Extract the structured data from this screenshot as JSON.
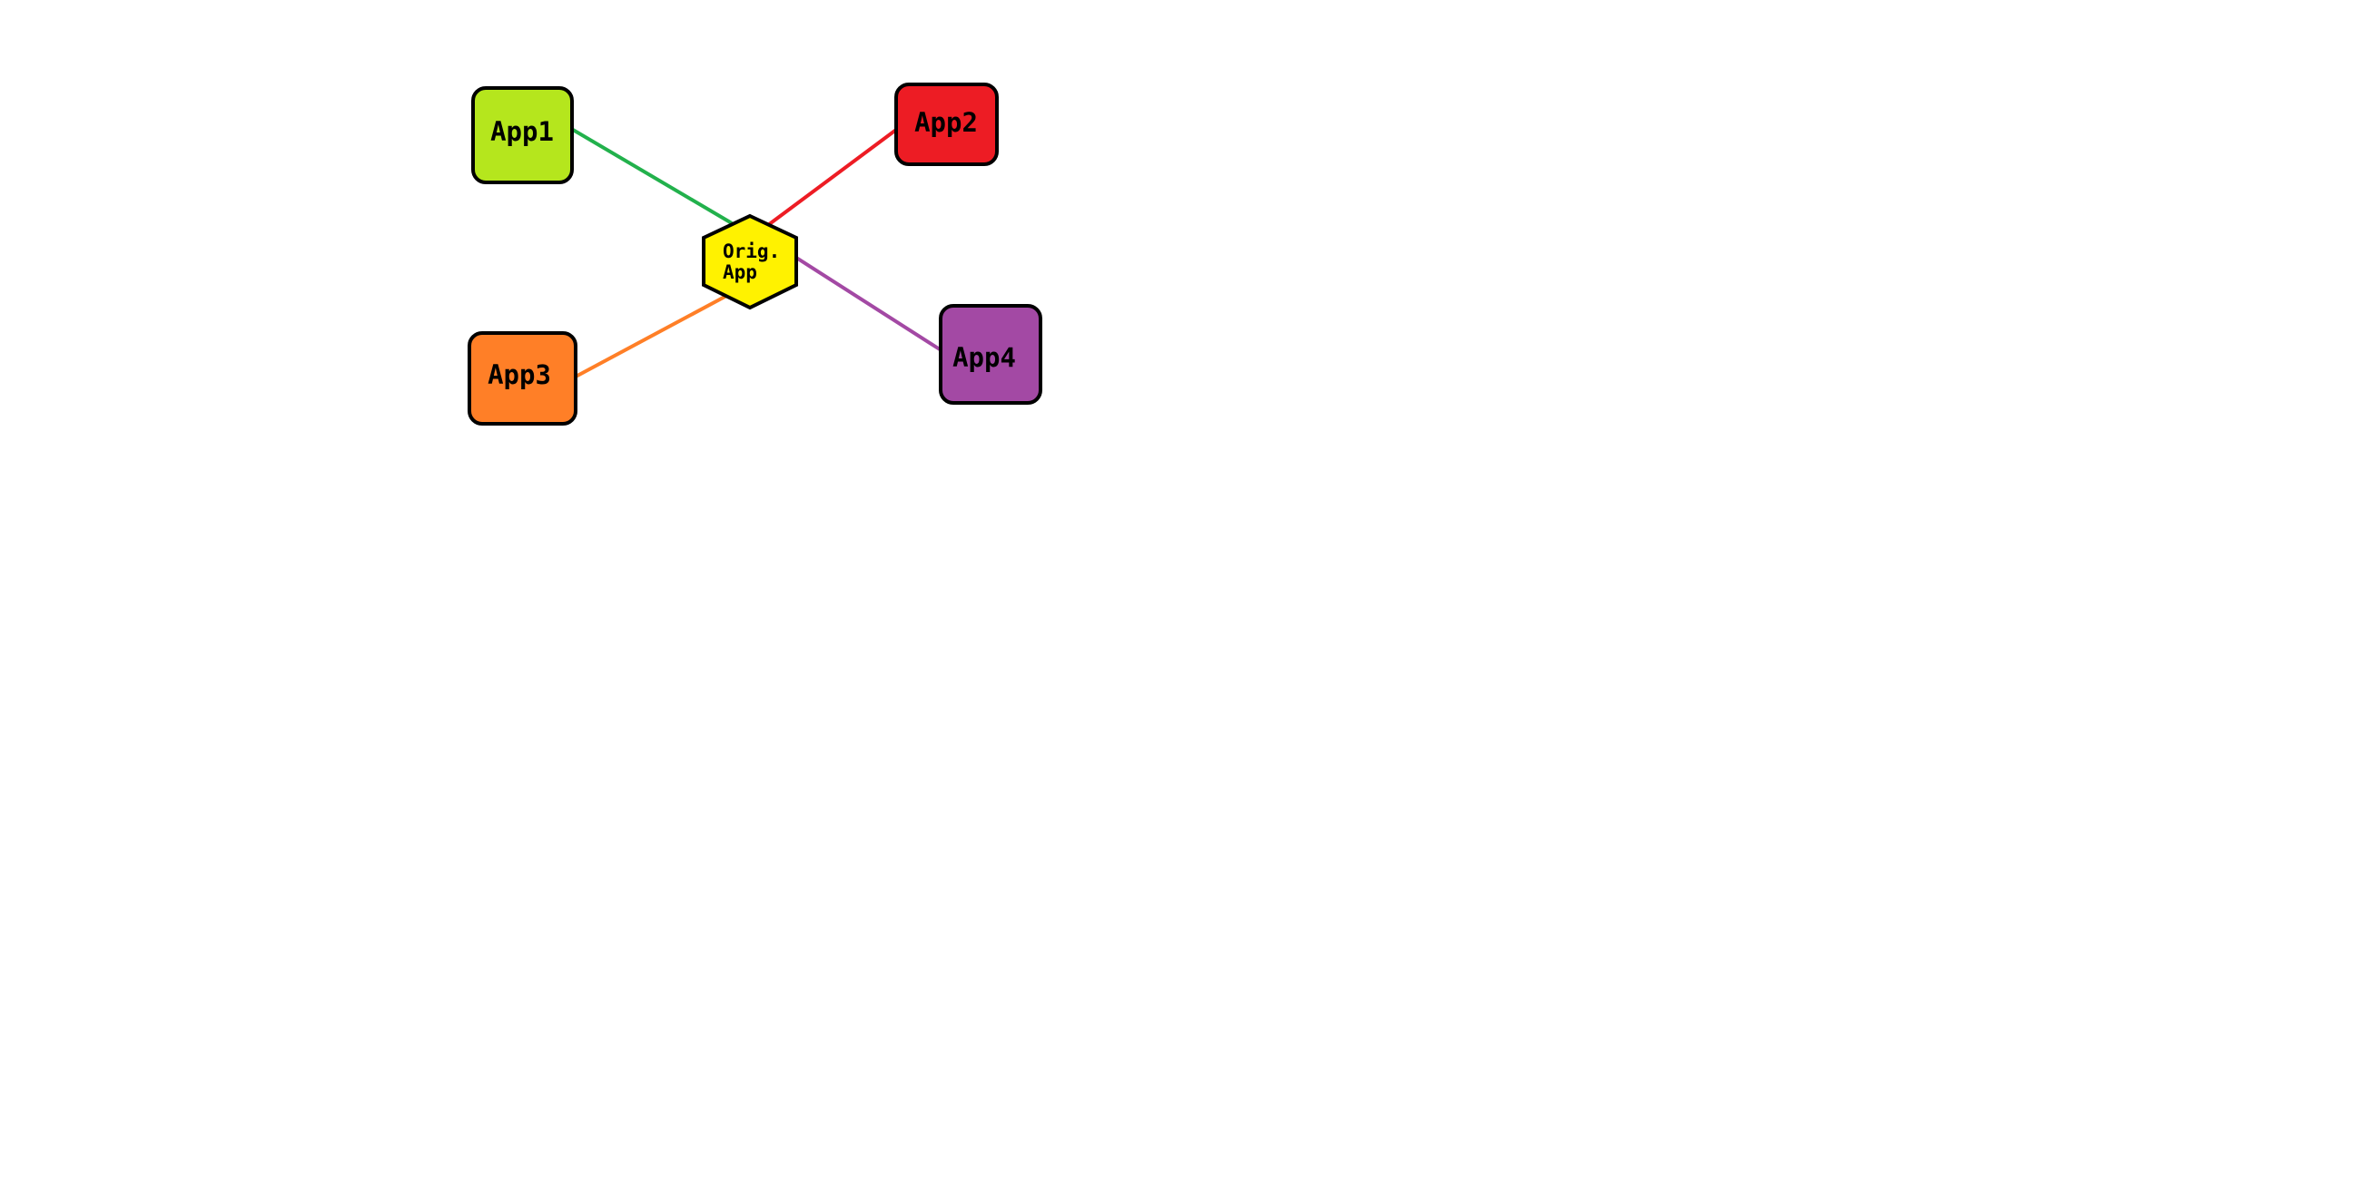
{
  "diagram": {
    "center": {
      "label_line1": "Orig.",
      "label_line2": "App",
      "fill": "#FFF200",
      "shape": "hexagon"
    },
    "apps": [
      {
        "label": "App1",
        "fill": "#B5E61D",
        "edge_color": "#22B14C"
      },
      {
        "label": "App2",
        "fill": "#ED1C24",
        "edge_color": "#ED1C24"
      },
      {
        "label": "App3",
        "fill": "#FF7F27",
        "edge_color": "#FF7F27"
      },
      {
        "label": "App4",
        "fill": "#A349A4",
        "edge_color": "#A349A4"
      }
    ],
    "border_color": "#000000"
  }
}
